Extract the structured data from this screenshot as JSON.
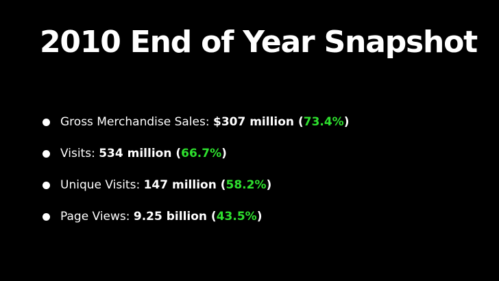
{
  "slide": {
    "title": "2010 End of Year Snapshot",
    "colors": {
      "background": "#000000",
      "text": "#ffffff",
      "percent_accent": "#2ee02e"
    },
    "items": [
      {
        "label": "Gross Merchandise Sales: ",
        "value": "$307 million",
        "open": " (",
        "percent": "73.4%",
        "close": ")"
      },
      {
        "label": "Visits: ",
        "value": "534 million",
        "open": " (",
        "percent": "66.7%",
        "close": ")"
      },
      {
        "label": "Unique Visits: ",
        "value": "147 million",
        "open": " (",
        "percent": "58.2%",
        "close": ")"
      },
      {
        "label": "Page Views: ",
        "value": "9.25 billion",
        "open": " (",
        "percent": "43.5%",
        "close": ")"
      }
    ]
  }
}
